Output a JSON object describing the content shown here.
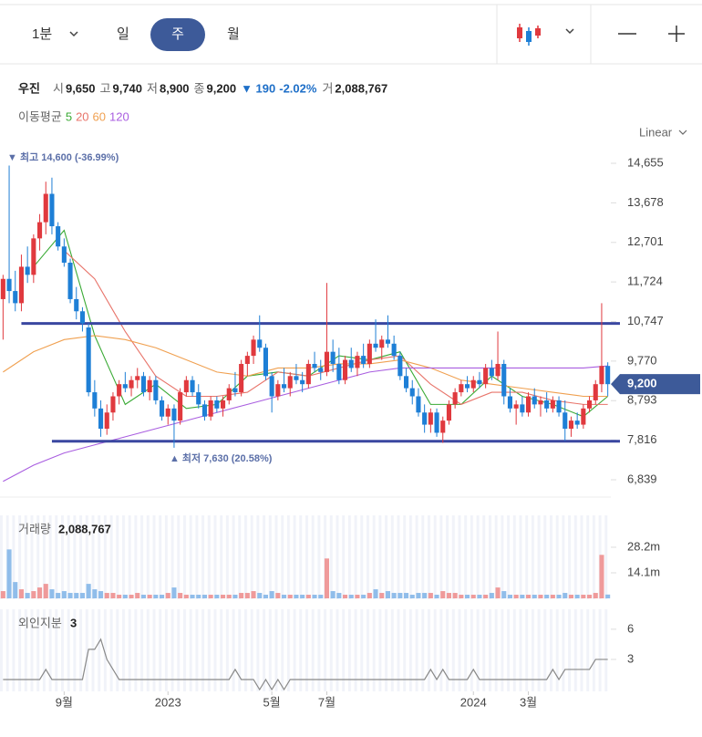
{
  "header": {
    "tabs": [
      "1분",
      "일",
      "주",
      "월"
    ],
    "name": "우진",
    "fields": [
      {
        "label": "시",
        "value": "9,650"
      },
      {
        "label": "고",
        "value": "9,740"
      },
      {
        "label": "저",
        "value": "8,900"
      },
      {
        "label": "종",
        "value": "9,200"
      }
    ],
    "change": "▼ 190",
    "change_pct": "-2.02%",
    "volume_label": "거",
    "volume": "2,088,767",
    "scale": "Linear"
  },
  "chart_data": [
    {
      "type": "candlestick",
      "ma_legend_title": "이동평균",
      "ylim": [
        6411,
        15083
      ],
      "yticks": [
        {
          "value": 14655,
          "label": "14,655"
        },
        {
          "value": 13678,
          "label": "13,678"
        },
        {
          "value": 12701,
          "label": "12,701"
        },
        {
          "value": 11724,
          "label": "11,724"
        },
        {
          "value": 10747,
          "label": "10,747"
        },
        {
          "value": 9770,
          "label": "9,770"
        },
        {
          "value": 8793,
          "label": "8,793"
        },
        {
          "value": 7816,
          "label": "7,816"
        },
        {
          "value": 6839,
          "label": "6,839"
        }
      ],
      "up_color": "#e0393e",
      "down_color": "#1e7fd6",
      "price_tag": {
        "value": 9200,
        "label": "9,200"
      },
      "high_annotation": {
        "value": 14600,
        "text": "▼ 최고 14,600 (-36.99%)"
      },
      "low_annotation": {
        "value": 7630,
        "text": "▲ 최저 7,630 (20.58%)"
      },
      "levels": [
        {
          "value": 10700,
          "from": 3
        },
        {
          "value": 7790,
          "from": 8
        }
      ],
      "level_color": "#3a47a0",
      "candles": [
        [
          11300,
          11900,
          10300,
          11800
        ],
        [
          11800,
          14600,
          11200,
          11500
        ],
        [
          11500,
          12000,
          11000,
          11200
        ],
        [
          11200,
          12400,
          11000,
          12100
        ],
        [
          12100,
          12600,
          11700,
          11900
        ],
        [
          11900,
          12900,
          11700,
          12800
        ],
        [
          12800,
          13400,
          12500,
          13200
        ],
        [
          13200,
          14200,
          12900,
          13900
        ],
        [
          13900,
          14300,
          12900,
          13100
        ],
        [
          13100,
          13200,
          12500,
          12600
        ],
        [
          12600,
          12800,
          12100,
          12200
        ],
        [
          12200,
          12300,
          11200,
          11300
        ],
        [
          11300,
          11600,
          10800,
          11000
        ],
        [
          11000,
          11100,
          10500,
          10700
        ],
        [
          10600,
          10700,
          8900,
          9000
        ],
        [
          9000,
          9300,
          8400,
          8600
        ],
        [
          8600,
          8800,
          7900,
          8100
        ],
        [
          8100,
          8700,
          7950,
          8500
        ],
        [
          8500,
          9000,
          8300,
          8900
        ],
        [
          8900,
          9300,
          8700,
          9200
        ],
        [
          9200,
          9500,
          9000,
          9100
        ],
        [
          9100,
          9400,
          8900,
          9300
        ],
        [
          9300,
          9600,
          9100,
          9400
        ],
        [
          9400,
          9500,
          8900,
          9000
        ],
        [
          9000,
          9400,
          8800,
          9300
        ],
        [
          9300,
          9400,
          8700,
          8800
        ],
        [
          8800,
          8900,
          8300,
          8400
        ],
        [
          8400,
          8700,
          8200,
          8600
        ],
        [
          8600,
          8700,
          7630,
          8300
        ],
        [
          8300,
          9100,
          8200,
          9000
        ],
        [
          9000,
          9400,
          8900,
          9300
        ],
        [
          9300,
          9400,
          8900,
          9000
        ],
        [
          9000,
          9200,
          8600,
          8700
        ],
        [
          8700,
          8800,
          8300,
          8400
        ],
        [
          8400,
          8900,
          8300,
          8800
        ],
        [
          8800,
          8900,
          8500,
          8600
        ],
        [
          8600,
          8900,
          8400,
          8800
        ],
        [
          8800,
          9200,
          8700,
          9100
        ],
        [
          9100,
          9500,
          8900,
          9000
        ],
        [
          9000,
          9800,
          8900,
          9700
        ],
        [
          9700,
          10000,
          9400,
          9900
        ],
        [
          9900,
          10400,
          9700,
          10300
        ],
        [
          10300,
          10900,
          10000,
          10100
        ],
        [
          10100,
          10200,
          9300,
          9400
        ],
        [
          9400,
          9500,
          8500,
          8900
        ],
        [
          8900,
          9300,
          8800,
          9200
        ],
        [
          9200,
          9600,
          9000,
          9100
        ],
        [
          9100,
          9500,
          8900,
          9400
        ],
        [
          9400,
          9700,
          9200,
          9300
        ],
        [
          9300,
          9500,
          9000,
          9200
        ],
        [
          9200,
          9800,
          9100,
          9700
        ],
        [
          9700,
          10000,
          9500,
          9600
        ],
        [
          9600,
          9800,
          9300,
          9500
        ],
        [
          9500,
          11700,
          9400,
          10000
        ],
        [
          10000,
          10300,
          9500,
          9700
        ],
        [
          9700,
          10100,
          9200,
          9300
        ],
        [
          9300,
          9900,
          9200,
          9800
        ],
        [
          9800,
          10100,
          9500,
          9600
        ],
        [
          9600,
          10000,
          9400,
          9900
        ],
        [
          9900,
          10200,
          9600,
          9700
        ],
        [
          9700,
          10300,
          9600,
          10200
        ],
        [
          10200,
          10800,
          10000,
          10100
        ],
        [
          10100,
          10400,
          9800,
          10300
        ],
        [
          10300,
          10900,
          10100,
          10200
        ],
        [
          10200,
          10400,
          9800,
          9900
        ],
        [
          9900,
          10000,
          9300,
          9400
        ],
        [
          9400,
          9600,
          9000,
          9100
        ],
        [
          9100,
          9300,
          8700,
          8900
        ],
        [
          8900,
          9100,
          8400,
          8500
        ],
        [
          8500,
          8700,
          8000,
          8200
        ],
        [
          8200,
          8600,
          8000,
          8500
        ],
        [
          8500,
          8600,
          7900,
          8000
        ],
        [
          8000,
          8400,
          7750,
          8300
        ],
        [
          8300,
          8800,
          8200,
          8700
        ],
        [
          8700,
          9100,
          8600,
          9000
        ],
        [
          9000,
          9300,
          8900,
          9200
        ],
        [
          9200,
          9400,
          9000,
          9100
        ],
        [
          9100,
          9400,
          9000,
          9300
        ],
        [
          9300,
          9500,
          9100,
          9200
        ],
        [
          9200,
          9700,
          9100,
          9600
        ],
        [
          9600,
          9800,
          9300,
          9400
        ],
        [
          9400,
          10500,
          9300,
          9700
        ],
        [
          9700,
          9800,
          8700,
          8900
        ],
        [
          8900,
          9100,
          8500,
          8600
        ],
        [
          8600,
          8800,
          8200,
          8700
        ],
        [
          8700,
          8900,
          8400,
          8500
        ],
        [
          8500,
          9000,
          8400,
          8900
        ],
        [
          8900,
          9100,
          8600,
          8700
        ],
        [
          8700,
          8900,
          8400,
          8800
        ],
        [
          8800,
          9000,
          8500,
          8600
        ],
        [
          8600,
          8900,
          8500,
          8800
        ],
        [
          8800,
          8900,
          8400,
          8500
        ],
        [
          8500,
          8800,
          7800,
          8100
        ],
        [
          8100,
          8400,
          7900,
          8300
        ],
        [
          8300,
          8500,
          8100,
          8200
        ],
        [
          8200,
          8700,
          8100,
          8600
        ],
        [
          8600,
          8900,
          8500,
          8800
        ],
        [
          8800,
          9300,
          8700,
          9200
        ],
        [
          9200,
          11200,
          9000,
          9650
        ],
        [
          9650,
          9740,
          8900,
          9200
        ]
      ],
      "ma": [
        {
          "name": "5",
          "color": "#3aaa35",
          "x": [
            5,
            10,
            15,
            20,
            25,
            30,
            35,
            40,
            45,
            50,
            55,
            60,
            65,
            70,
            75,
            80,
            85,
            90,
            95,
            99
          ],
          "values": [
            12100,
            13000,
            10400,
            8700,
            9200,
            8600,
            8700,
            9400,
            9500,
            9400,
            9900,
            9800,
            10000,
            8700,
            8700,
            9400,
            8900,
            8700,
            8400,
            8900
          ]
        },
        {
          "name": "20",
          "color": "#e8746a",
          "x": [
            10,
            15,
            20,
            25,
            30,
            35,
            40,
            45,
            50,
            55,
            60,
            65,
            70,
            75,
            80,
            85,
            90,
            95,
            99
          ],
          "values": [
            12500,
            11800,
            10500,
            9400,
            8900,
            8900,
            9000,
            9500,
            9400,
            9600,
            9800,
            9900,
            9200,
            8700,
            9000,
            9000,
            8800,
            8700,
            8700
          ]
        },
        {
          "name": "60",
          "color": "#f0a050",
          "x": [
            0,
            5,
            10,
            15,
            20,
            25,
            30,
            35,
            40,
            45,
            50,
            55,
            60,
            65,
            70,
            75,
            80,
            85,
            90,
            95,
            99
          ],
          "values": [
            9500,
            10000,
            10300,
            10400,
            10300,
            10100,
            9800,
            9500,
            9400,
            9600,
            9600,
            9700,
            9700,
            9800,
            9600,
            9300,
            9200,
            9100,
            9000,
            8900,
            8900
          ]
        },
        {
          "name": "120",
          "color": "#a95ee0",
          "x": [
            0,
            5,
            10,
            15,
            20,
            25,
            30,
            35,
            40,
            45,
            50,
            55,
            60,
            65,
            70,
            75,
            80,
            85,
            90,
            95,
            99
          ],
          "values": [
            6800,
            7200,
            7500,
            7700,
            7900,
            8100,
            8300,
            8500,
            8700,
            8900,
            9100,
            9300,
            9500,
            9600,
            9600,
            9600,
            9600,
            9600,
            9600,
            9600,
            9650
          ]
        }
      ]
    },
    {
      "type": "bar",
      "title": "거래량",
      "title_value": "2,088,767",
      "ylim": [
        0,
        45.8
      ],
      "yticks": [
        {
          "value": 28.2,
          "label": "28.2m"
        },
        {
          "value": 14.1,
          "label": "14.1m"
        }
      ],
      "up_color": "#ef9a9a",
      "down_color": "#90bdea",
      "values": [
        4,
        27,
        9,
        5,
        3,
        4,
        6,
        8,
        5,
        3,
        4,
        3,
        3,
        3,
        8,
        5,
        4,
        3,
        3,
        2,
        2,
        2,
        3,
        2,
        2,
        2,
        2,
        3,
        6,
        3,
        2,
        2,
        2,
        2,
        2,
        2,
        2,
        2,
        2,
        3,
        3,
        4,
        3,
        2,
        4,
        3,
        2,
        2,
        2,
        2,
        2,
        2,
        2,
        22,
        4,
        3,
        2,
        2,
        2,
        2,
        3,
        5,
        3,
        4,
        3,
        3,
        3,
        2,
        3,
        3,
        3,
        2,
        4,
        3,
        3,
        2,
        2,
        2,
        2,
        2,
        3,
        6,
        4,
        2,
        2,
        2,
        2,
        2,
        2,
        2,
        2,
        2,
        3,
        2,
        2,
        2,
        2,
        3,
        24,
        2.1
      ]
    },
    {
      "type": "line",
      "title": "외인지분",
      "title_value": "3",
      "color": "#888888",
      "ylim": [
        0,
        7.8
      ],
      "yticks": [
        6,
        3
      ],
      "xticks": [
        {
          "value": 10,
          "label": "9월"
        },
        {
          "value": 27,
          "label": "2023"
        },
        {
          "value": 44,
          "label": "5월"
        },
        {
          "value": 53,
          "label": "7월"
        },
        {
          "value": 77,
          "label": "2024"
        },
        {
          "value": 86,
          "label": "3월"
        }
      ],
      "x": [
        0,
        6,
        7,
        8,
        13,
        14,
        15,
        16,
        17,
        18,
        19,
        37,
        38,
        39,
        41,
        42,
        43,
        44,
        45,
        46,
        47,
        48,
        69,
        70,
        71,
        72,
        73,
        76,
        77,
        78,
        89,
        90,
        91,
        92,
        96,
        97,
        99
      ],
      "values": [
        1,
        1,
        2,
        1,
        1,
        4,
        4,
        5,
        3,
        2,
        1,
        1,
        2,
        1,
        1,
        0,
        1,
        0,
        1,
        0,
        1,
        1,
        1,
        2,
        1,
        2,
        1,
        1,
        2,
        1,
        1,
        2,
        1,
        2,
        2,
        3,
        3
      ]
    }
  ]
}
